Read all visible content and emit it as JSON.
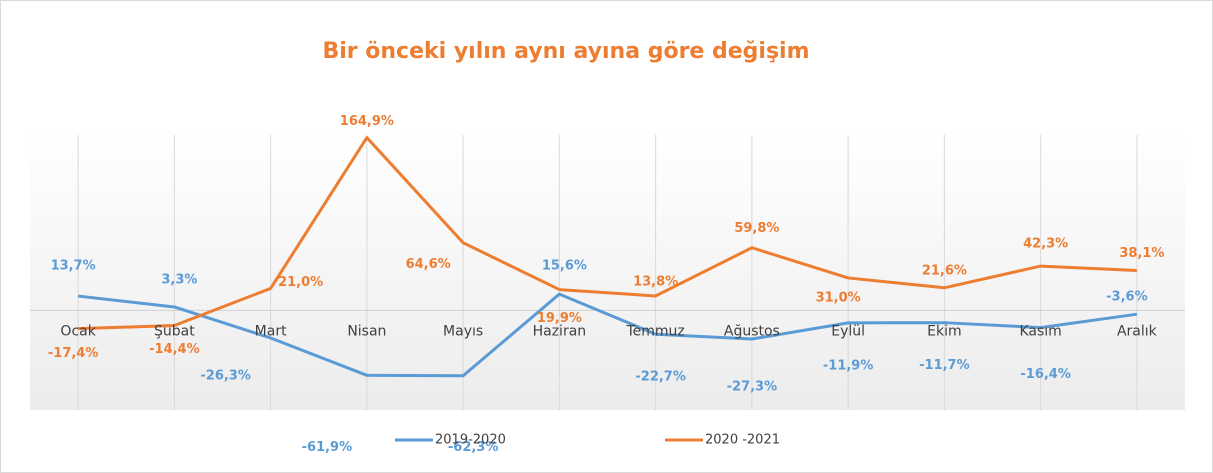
{
  "chart_data": {
    "type": "line",
    "title": "Bir önceki yılın aynı ayına göre değişim",
    "categories": [
      "Ocak",
      "Şubat",
      "Mart",
      "Nisan",
      "Mayıs",
      "Haziran",
      "Temmuz",
      "Ağustos",
      "Eylül",
      "Ekim",
      "Kasım",
      "Aralık"
    ],
    "series": [
      {
        "name": "2019-2020",
        "color": "#5b9bd5",
        "values": [
          13.7,
          3.3,
          -26.3,
          -61.9,
          -62.3,
          15.6,
          -22.7,
          -27.3,
          -11.9,
          -11.7,
          -16.4,
          -3.6
        ],
        "value_labels": [
          "13,7%",
          "3,3%",
          "-26,3%",
          "-61,9%",
          "-62,3%",
          "15,6%",
          "-22,7%",
          "-27,3%",
          "-11,9%",
          "-11,7%",
          "-16,4%",
          "-3,6%"
        ]
      },
      {
        "name": "2020 -2021",
        "color": "#ed7d31",
        "values": [
          -17.4,
          -14.4,
          21.0,
          164.9,
          64.6,
          19.9,
          13.8,
          59.8,
          31.0,
          21.6,
          42.3,
          38.1
        ],
        "value_labels": [
          "-17,4%",
          "-14,4%",
          "21,0%",
          "164,9%",
          "64,6%",
          "19,9%",
          "13,8%",
          "59,8%",
          "31,0%",
          "21,6%",
          "42,3%",
          "38,1%"
        ]
      }
    ],
    "ylim": [
      -95,
      175
    ],
    "legend": "bottom"
  }
}
